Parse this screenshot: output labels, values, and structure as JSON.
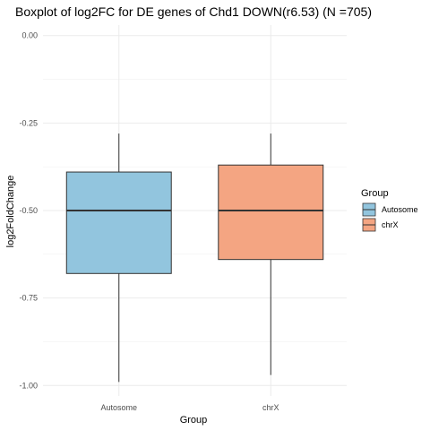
{
  "chart_data": {
    "type": "box",
    "title": "Boxplot of log2FC for DE genes of Chd1 DOWN(r6.53) (N =705)",
    "xlabel": "Group",
    "ylabel": "log2FoldChange",
    "categories": [
      "Autosome",
      "chrX"
    ],
    "y_ticks": [
      "0.00",
      "-0.25",
      "-0.50",
      "-0.75",
      "-1.00"
    ],
    "y_tick_values": [
      0.0,
      -0.25,
      -0.5,
      -0.75,
      -1.0
    ],
    "ylim": [
      -1.03,
      0.03
    ],
    "grid": true,
    "legend": {
      "title": "Group",
      "position": "right",
      "items": [
        "Autosome",
        "chrX"
      ]
    },
    "series": [
      {
        "category": "Autosome",
        "color": "#92c5de",
        "whisker_low": -0.99,
        "q1": -0.68,
        "median": -0.5,
        "q3": -0.39,
        "whisker_high": -0.28
      },
      {
        "category": "chrX",
        "color": "#f4a582",
        "whisker_low": -0.97,
        "q1": -0.64,
        "median": -0.5,
        "q3": -0.37,
        "whisker_high": -0.28
      }
    ]
  }
}
